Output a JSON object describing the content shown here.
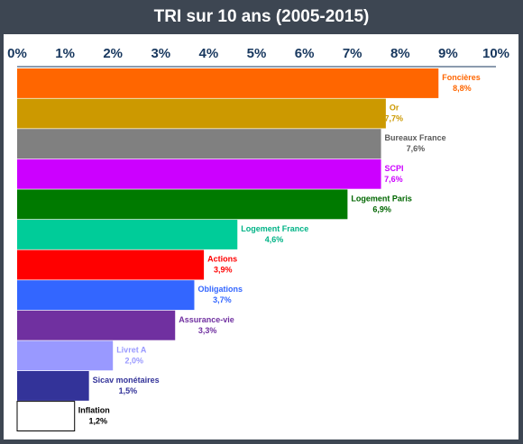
{
  "chart_data": {
    "type": "bar",
    "orientation": "horizontal",
    "title": "TRI sur 10 ans (2005-2015)",
    "xlim": [
      0,
      10
    ],
    "x_ticks": [
      "0%",
      "1%",
      "2%",
      "3%",
      "4%",
      "5%",
      "6%",
      "7%",
      "8%",
      "9%",
      "10%"
    ],
    "grid": false,
    "categories": [
      "Foncières",
      "Or",
      "Bureaux France",
      "SCPI",
      "Logement Paris",
      "Logement France",
      "Actions",
      "Obligations",
      "Assurance-vie",
      "Livret A",
      "Sicav monétaires",
      "Inflation"
    ],
    "values": [
      8.8,
      7.7,
      7.6,
      7.6,
      6.9,
      4.6,
      3.9,
      3.7,
      3.3,
      2.0,
      1.5,
      1.2
    ],
    "value_labels": [
      "8,8%",
      "7,7%",
      "7,6%",
      "7,6%",
      "6,9%",
      "4,6%",
      "3,9%",
      "3,7%",
      "3,3%",
      "2,0%",
      "1,5%",
      "1,2%"
    ],
    "bar_colors": [
      "#ff6600",
      "#cc9900",
      "#808080",
      "#cc00ff",
      "#007a00",
      "#00cc99",
      "#ff0000",
      "#3366ff",
      "#7030a0",
      "#9999ff",
      "#333399",
      "#ffffff"
    ],
    "label_colors": [
      "#ff6600",
      "#cc9900",
      "#595959",
      "#cc00ff",
      "#006600",
      "#00b386",
      "#ff0000",
      "#3366ff",
      "#7030a0",
      "#9999ff",
      "#333399",
      "#000000"
    ]
  },
  "colors": {
    "background": "#3d4652",
    "title": "#ffffff",
    "axis": "#17375e",
    "panel": "#ffffff"
  }
}
